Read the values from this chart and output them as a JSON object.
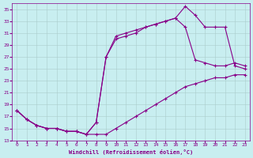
{
  "bg_color": "#c8eef0",
  "line_color": "#880088",
  "xlabel": "Windchill (Refroidissement éolien,°C)",
  "xlim_min": -0.5,
  "xlim_max": 23.5,
  "ylim_min": 13,
  "ylim_max": 36,
  "yticks": [
    13,
    15,
    17,
    19,
    21,
    23,
    25,
    27,
    29,
    31,
    33,
    35
  ],
  "xticks": [
    0,
    1,
    2,
    3,
    4,
    5,
    6,
    7,
    8,
    9,
    10,
    11,
    12,
    13,
    14,
    15,
    16,
    17,
    18,
    19,
    20,
    21,
    22,
    23
  ],
  "series1_x": [
    0,
    1,
    2,
    3,
    4,
    5,
    6,
    7,
    8,
    9,
    10,
    11,
    12,
    13,
    14,
    15,
    16,
    17,
    18,
    19,
    20,
    21,
    22,
    23
  ],
  "series1_y": [
    18.0,
    16.5,
    15.5,
    15.0,
    15.0,
    14.5,
    14.5,
    14.0,
    14.0,
    14.0,
    15.0,
    16.0,
    17.0,
    18.0,
    19.0,
    20.0,
    21.0,
    22.0,
    22.5,
    23.0,
    23.5,
    23.5,
    24.0,
    24.0
  ],
  "series2_x": [
    0,
    1,
    2,
    3,
    4,
    5,
    6,
    7,
    8,
    9,
    10,
    11,
    12,
    13,
    14,
    15,
    16,
    17,
    18,
    19,
    20,
    21,
    22,
    23
  ],
  "series2_y": [
    18.0,
    16.5,
    15.5,
    15.0,
    15.0,
    14.5,
    14.5,
    14.0,
    16.0,
    27.0,
    30.5,
    31.0,
    31.5,
    32.0,
    32.5,
    33.0,
    33.5,
    32.0,
    26.5,
    26.0,
    25.5,
    25.5,
    26.0,
    25.5
  ],
  "series3_x": [
    0,
    1,
    2,
    3,
    4,
    5,
    6,
    7,
    8,
    9,
    10,
    11,
    12,
    13,
    14,
    15,
    16,
    17,
    18,
    19,
    20,
    21,
    22,
    23
  ],
  "series3_y": [
    18.0,
    16.5,
    15.5,
    15.0,
    15.0,
    14.5,
    14.5,
    14.0,
    16.0,
    27.0,
    30.0,
    30.5,
    31.0,
    32.0,
    32.5,
    33.0,
    33.5,
    35.5,
    34.0,
    32.0,
    32.0,
    32.0,
    25.5,
    25.0
  ]
}
